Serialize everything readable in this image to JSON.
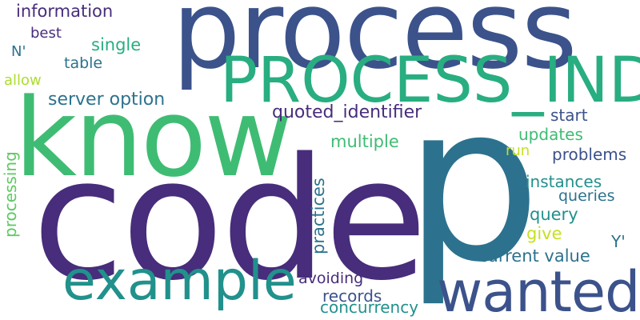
{
  "word_cloud": {
    "palette": {
      "deep_purple": "#472d7b",
      "indigo": "#3b528b",
      "steel_blue": "#2c728e",
      "teal_dark": "#21918c",
      "teal": "#28ae80",
      "green": "#3fbc73",
      "lime": "#5ec962",
      "yellow_green": "#addc30"
    },
    "words": [
      {
        "id": "code",
        "text": "code",
        "color": "#472d7b"
      },
      {
        "id": "p",
        "text": "p",
        "color": "#2c728e"
      },
      {
        "id": "process",
        "text": "process",
        "color": "#3b528b"
      },
      {
        "id": "know",
        "text": "know",
        "color": "#3fbc73"
      },
      {
        "id": "process-ind",
        "text": "PROCESS_IND",
        "color": "#28ae80"
      },
      {
        "id": "example",
        "text": "example",
        "color": "#21918c"
      },
      {
        "id": "wanted",
        "text": "wanted",
        "color": "#3b528b"
      },
      {
        "id": "information",
        "text": "information",
        "color": "#472d7b"
      },
      {
        "id": "best",
        "text": "best",
        "color": "#472d7b"
      },
      {
        "id": "single",
        "text": "single",
        "color": "#28ae80"
      },
      {
        "id": "n-quote",
        "text": "N'",
        "color": "#2c728e"
      },
      {
        "id": "table",
        "text": "table",
        "color": "#2c728e"
      },
      {
        "id": "allow",
        "text": "allow",
        "color": "#addc30"
      },
      {
        "id": "server-option",
        "text": "server option",
        "color": "#2c728e"
      },
      {
        "id": "quoted-identifier",
        "text": "quoted_identifier",
        "color": "#472d7b"
      },
      {
        "id": "start",
        "text": "start",
        "color": "#3b528b"
      },
      {
        "id": "updates",
        "text": "updates",
        "color": "#3fbc73"
      },
      {
        "id": "multiple",
        "text": "multiple",
        "color": "#3fbc73"
      },
      {
        "id": "run",
        "text": "run",
        "color": "#c8e020"
      },
      {
        "id": "problems",
        "text": "problems",
        "color": "#3b528b"
      },
      {
        "id": "processing",
        "text": "processing",
        "color": "#5ec962"
      },
      {
        "id": "practices",
        "text": "practices",
        "color": "#2c728e"
      },
      {
        "id": "instances",
        "text": "instances",
        "color": "#21918c"
      },
      {
        "id": "queries",
        "text": "queries",
        "color": "#2c728e"
      },
      {
        "id": "query",
        "text": "query",
        "color": "#21918c"
      },
      {
        "id": "give",
        "text": "give",
        "color": "#c8e020"
      },
      {
        "id": "y-quote",
        "text": "Y'",
        "color": "#2c728e"
      },
      {
        "id": "current-value",
        "text": "current value",
        "color": "#2c728e"
      },
      {
        "id": "avoiding",
        "text": "avoiding",
        "color": "#472d7b"
      },
      {
        "id": "records",
        "text": "records",
        "color": "#3b528b"
      },
      {
        "id": "concurrency",
        "text": "concurrency",
        "color": "#21918c"
      }
    ]
  }
}
